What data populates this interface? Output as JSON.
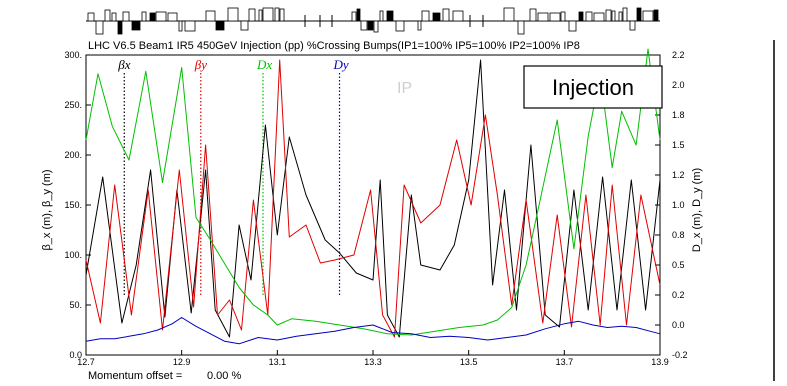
{
  "chart_data": {
    "type": "line",
    "title": "LHC V6.5 Beam1 IR5 450GeV Injection (pp) %Crossing Bumps(IP1=100% IP5=100% IP2=100% IP8",
    "ylabel": "β_x (m), β_y (m)",
    "y2label": "D_x (m), D_y (m)",
    "footer_label": "Momentum offset =",
    "footer_value": "0.00 %",
    "badge": "Injection",
    "ip_label": "IP",
    "xlim": [
      12.7,
      13.9
    ],
    "ylim": [
      0,
      300
    ],
    "y2lim": [
      -0.2,
      2.2
    ],
    "x_ticks": [
      "12.7",
      "12.9",
      "13.1",
      "13.3",
      "13.5",
      "13.7",
      "13.9"
    ],
    "y_ticks": [
      "0.0",
      "50.",
      "100.",
      "150.",
      "200.",
      "250.",
      "300."
    ],
    "y2_ticks": [
      "-0.2",
      "0.0",
      "0.2",
      "0.5",
      "0.8",
      "1.0",
      "1.2",
      "1.5",
      "1.8",
      "2.0",
      "2.2"
    ],
    "legend_markers": [
      {
        "label": "βx",
        "x": 12.78,
        "color": "#000000",
        "axis": "left"
      },
      {
        "label": "βy",
        "x": 12.94,
        "color": "#e00000",
        "axis": "left"
      },
      {
        "label": "Dx",
        "x": 13.07,
        "color": "#00c000",
        "axis": "left"
      },
      {
        "label": "Dy",
        "x": 13.23,
        "color": "#0000c0",
        "axis": "left"
      }
    ],
    "series": [
      {
        "name": "βx",
        "color": "#000000",
        "axis": "left",
        "x": [
          12.7,
          12.735,
          12.775,
          12.805,
          12.835,
          12.865,
          12.89,
          12.92,
          12.95,
          12.97,
          13.0,
          13.02,
          13.045,
          13.075,
          13.1,
          13.125,
          13.16,
          13.2,
          13.23,
          13.265,
          13.3,
          13.315,
          13.33,
          13.355,
          13.38,
          13.4,
          13.44,
          13.47,
          13.5,
          13.525,
          13.55,
          13.575,
          13.6,
          13.63,
          13.66,
          13.69,
          13.72,
          13.75,
          13.78,
          13.81,
          13.84,
          13.87,
          13.9
        ],
        "y": [
          80,
          178,
          32,
          90,
          185,
          38,
          165,
          42,
          185,
          45,
          18,
          130,
          75,
          230,
          120,
          218,
          160,
          115,
          102,
          82,
          75,
          175,
          40,
          18,
          160,
          90,
          85,
          110,
          175,
          295,
          70,
          165,
          45,
          210,
          40,
          28,
          165,
          45,
          178,
          45,
          175,
          45,
          175
        ]
      },
      {
        "name": "βy",
        "color": "#e00000",
        "axis": "left",
        "x": [
          12.7,
          12.73,
          12.76,
          12.795,
          12.83,
          12.86,
          12.895,
          12.925,
          12.95,
          12.975,
          13.0,
          13.025,
          13.05,
          13.08,
          13.105,
          13.125,
          13.16,
          13.19,
          13.22,
          13.26,
          13.295,
          13.32,
          13.345,
          13.365,
          13.4,
          13.44,
          13.475,
          13.505,
          13.535,
          13.56,
          13.59,
          13.62,
          13.655,
          13.685,
          13.715,
          13.745,
          13.775,
          13.8,
          13.83,
          13.86,
          13.9
        ],
        "y": [
          95,
          32,
          170,
          40,
          165,
          25,
          185,
          48,
          210,
          40,
          55,
          25,
          155,
          40,
          295,
          118,
          130,
          92,
          95,
          100,
          165,
          40,
          18,
          170,
          132,
          150,
          215,
          150,
          240,
          160,
          50,
          155,
          32,
          140,
          28,
          160,
          30,
          170,
          30,
          160,
          70
        ]
      },
      {
        "name": "Dx",
        "color": "#00c000",
        "axis": "right",
        "x": [
          12.7,
          12.725,
          12.755,
          12.79,
          12.825,
          12.86,
          12.9,
          12.93,
          12.96,
          12.99,
          13.02,
          13.05,
          13.08,
          13.1,
          13.13,
          13.18,
          13.23,
          13.28,
          13.33,
          13.38,
          13.43,
          13.48,
          13.53,
          13.56,
          13.59,
          13.62,
          13.65,
          13.685,
          13.72,
          13.75,
          13.775,
          13.8,
          13.82,
          13.85,
          13.875,
          13.9
        ],
        "y": [
          1.52,
          2.05,
          1.63,
          1.36,
          2.07,
          1.18,
          2.1,
          0.9,
          0.72,
          0.53,
          0.34,
          0.2,
          0.12,
          0.04,
          0.09,
          0.07,
          0.04,
          0.01,
          -0.03,
          -0.04,
          -0.01,
          0.02,
          0.04,
          0.08,
          0.18,
          0.52,
          1.05,
          1.68,
          0.65,
          1.55,
          2.05,
          1.3,
          1.75,
          1.48,
          2.35,
          1.52
        ]
      },
      {
        "name": "Dy",
        "color": "#0000c0",
        "axis": "right",
        "x": [
          12.7,
          12.73,
          12.76,
          12.79,
          12.82,
          12.85,
          12.88,
          12.9,
          12.93,
          12.96,
          12.99,
          13.02,
          13.06,
          13.1,
          13.14,
          13.18,
          13.22,
          13.26,
          13.3,
          13.34,
          13.38,
          13.42,
          13.46,
          13.5,
          13.54,
          13.58,
          13.62,
          13.66,
          13.7,
          13.73,
          13.76,
          13.79,
          13.82,
          13.85,
          13.88,
          13.9
        ],
        "y": [
          -0.09,
          -0.07,
          -0.07,
          -0.05,
          -0.03,
          0.0,
          0.05,
          0.1,
          0.03,
          -0.03,
          -0.09,
          -0.11,
          -0.06,
          -0.08,
          -0.05,
          -0.03,
          -0.01,
          0.02,
          0.04,
          -0.02,
          -0.03,
          -0.06,
          -0.05,
          -0.06,
          -0.08,
          -0.06,
          -0.04,
          0.01,
          0.05,
          0.07,
          0.04,
          0.02,
          0.03,
          0.02,
          -0.01,
          -0.03
        ]
      }
    ]
  }
}
